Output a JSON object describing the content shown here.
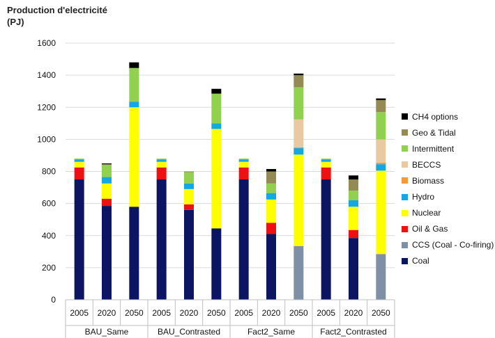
{
  "chart_data": {
    "type": "bar",
    "stacked": true,
    "ylabel": "Production d'electricité (PJ)",
    "ylim": [
      0,
      1600
    ],
    "yticks": [
      0,
      200,
      400,
      600,
      800,
      1000,
      1200,
      1400,
      1600
    ],
    "grid": "horizontal",
    "legend_position": "right",
    "groups": [
      "BAU_Same",
      "BAU_Contrasted",
      "Fact2_Same",
      "Fact2_Contrasted"
    ],
    "years": [
      "2005",
      "2020",
      "2050"
    ],
    "categories": [
      "2005",
      "2020",
      "2050",
      "2005",
      "2020",
      "2050",
      "2005",
      "2020",
      "2050",
      "2005",
      "2020",
      "2050"
    ],
    "series": [
      {
        "name": "Coal",
        "color": "#0b1561",
        "values": [
          750,
          585,
          580,
          750,
          560,
          445,
          750,
          410,
          0,
          750,
          385,
          0
        ]
      },
      {
        "name": "CCS (Coal - Co-firing)",
        "color": "#7f8fa6",
        "values": [
          0,
          0,
          0,
          0,
          0,
          0,
          0,
          0,
          335,
          0,
          0,
          285
        ]
      },
      {
        "name": "Oil & Gas",
        "color": "#ee1111",
        "values": [
          75,
          45,
          0,
          75,
          35,
          0,
          75,
          70,
          0,
          75,
          50,
          0
        ]
      },
      {
        "name": "Nuclear",
        "color": "#ffff00",
        "values": [
          35,
          95,
          620,
          35,
          95,
          620,
          35,
          145,
          570,
          35,
          145,
          520
        ]
      },
      {
        "name": "Hydro",
        "color": "#13a7e3",
        "values": [
          15,
          40,
          35,
          15,
          35,
          35,
          15,
          40,
          40,
          15,
          40,
          40
        ]
      },
      {
        "name": "Biomass",
        "color": "#f49a3b",
        "values": [
          0,
          0,
          0,
          0,
          0,
          0,
          0,
          0,
          5,
          0,
          0,
          10
        ]
      },
      {
        "name": "BECCS",
        "color": "#e8c9a2",
        "values": [
          0,
          0,
          0,
          0,
          0,
          0,
          0,
          0,
          175,
          0,
          0,
          145
        ]
      },
      {
        "name": "Intermittent",
        "color": "#92d050",
        "values": [
          5,
          75,
          210,
          5,
          70,
          185,
          5,
          60,
          200,
          5,
          60,
          170
        ]
      },
      {
        "name": "Geo & Tidal",
        "color": "#948a54",
        "values": [
          0,
          5,
          0,
          0,
          5,
          0,
          0,
          75,
          75,
          0,
          70,
          75
        ]
      },
      {
        "name": "CH4 options",
        "color": "#000000",
        "values": [
          0,
          5,
          35,
          0,
          0,
          30,
          0,
          15,
          10,
          0,
          25,
          10
        ]
      }
    ],
    "legend_order": [
      "CH4 options",
      "Geo & Tidal",
      "Intermittent",
      "BECCS",
      "Biomass",
      "Hydro",
      "Nuclear",
      "Oil & Gas",
      "CCS (Coal - Co-firing)",
      "Coal"
    ]
  }
}
